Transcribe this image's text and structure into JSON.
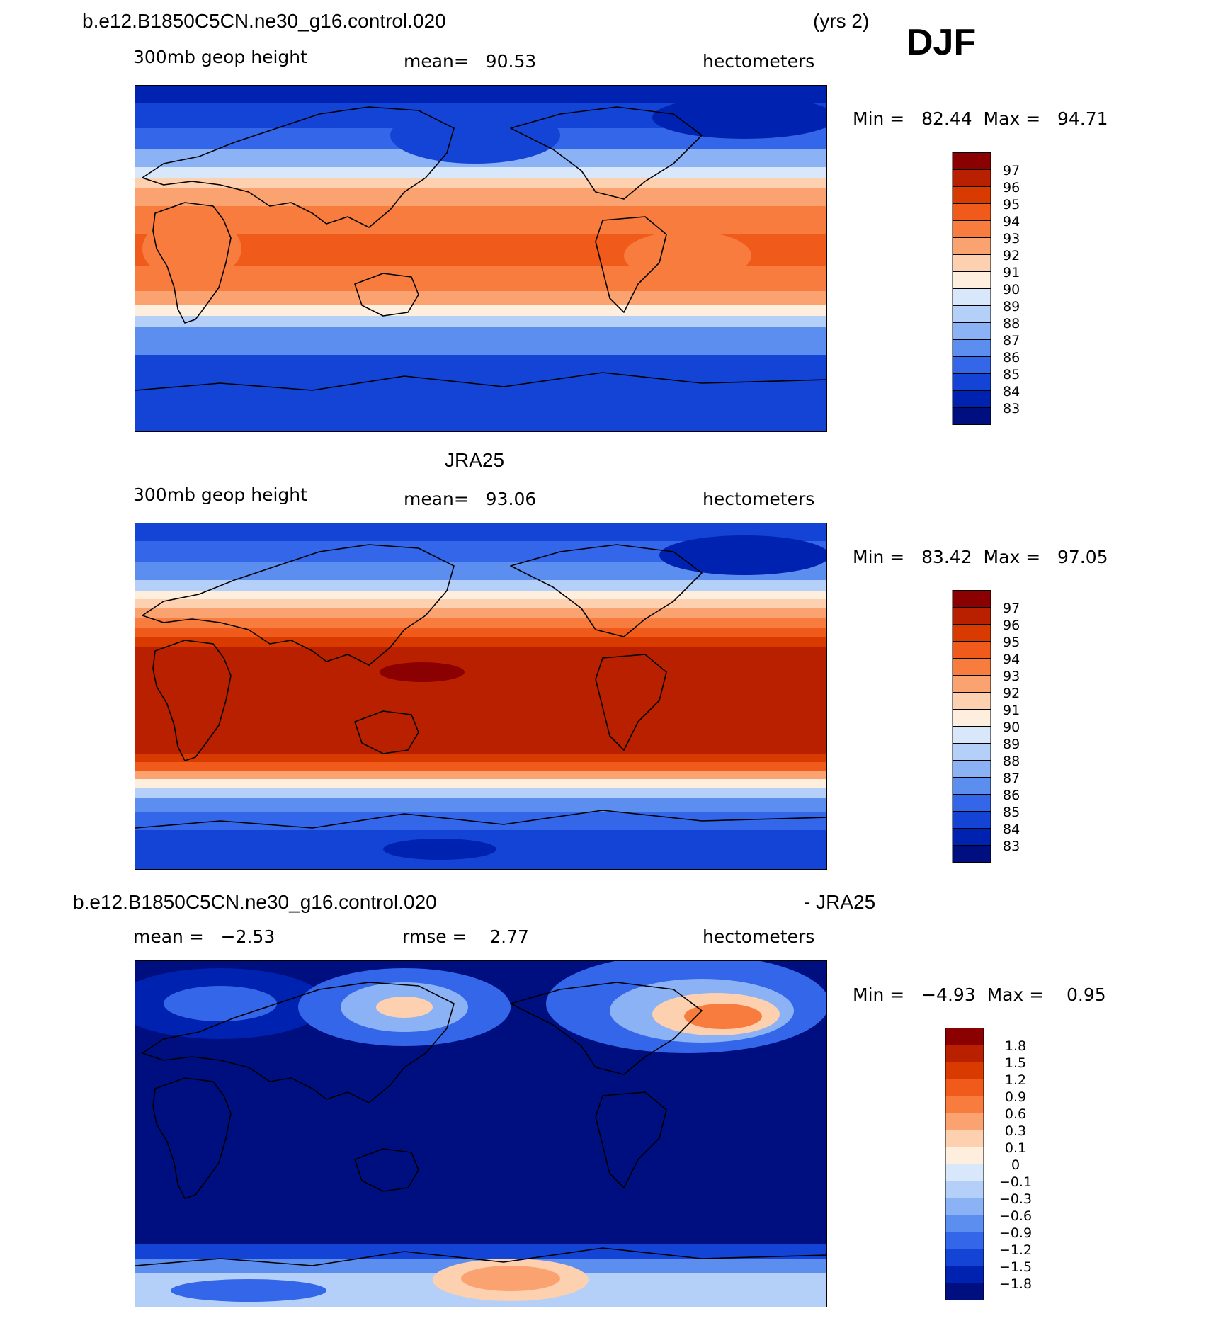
{
  "season": "DJF",
  "panels": [
    {
      "id": "model",
      "header_left": "b.e12.B1850C5CN.ne30_g16.control.020",
      "header_right": "(yrs 2)",
      "left_label": "300mb geop height",
      "center_label": "mean=   90.53",
      "right_label": "hectometers",
      "minmax": "Min =   82.44  Max =   94.71"
    },
    {
      "id": "obs",
      "header_center": "JRA25",
      "left_label": "300mb geop height",
      "center_label": "mean=   93.06",
      "right_label": "hectometers",
      "minmax": "Min =   83.42  Max =   97.05"
    },
    {
      "id": "diff",
      "header_left": "b.e12.B1850C5CN.ne30_g16.control.020",
      "header_right": "- JRA25",
      "left_label": "mean =   −2.53",
      "center_label": "rmse =    2.77",
      "right_label": "hectometers",
      "minmax": "Min =   −4.93  Max =    0.95"
    }
  ],
  "chart_data": [
    {
      "type": "heatmap",
      "title": "b.e12.B1850C5CN.ne30_g16.control.020 (yrs 2)",
      "variable": "300mb geop height",
      "units": "hectometers",
      "mean": 90.53,
      "min": 82.44,
      "max": 94.71,
      "colorbar_levels": [
        "97",
        "96",
        "95",
        "94",
        "93",
        "92",
        "91",
        "90",
        "89",
        "88",
        "87",
        "86",
        "85",
        "84",
        "83"
      ],
      "colors": [
        "#8b0000",
        "#b82000",
        "#d93a00",
        "#f05a1a",
        "#f77c3e",
        "#faa370",
        "#fdd0b0",
        "#fdeedd",
        "#d8e8fa",
        "#b4d0f8",
        "#8bb2f5",
        "#5c8ef0",
        "#3366e8",
        "#1444d6",
        "#0022b0",
        "#000f80"
      ],
      "latitude_band_values": [
        {
          "lat": 85,
          "value": 83.0
        },
        {
          "lat": 70,
          "value": 84.8
        },
        {
          "lat": 55,
          "value": 87.0
        },
        {
          "lat": 40,
          "value": 89.5
        },
        {
          "lat": 30,
          "value": 91.5
        },
        {
          "lat": 20,
          "value": 93.5
        },
        {
          "lat": 0,
          "value": 94.3
        },
        {
          "lat": -20,
          "value": 93.3
        },
        {
          "lat": -30,
          "value": 91.0
        },
        {
          "lat": -40,
          "value": 88.0
        },
        {
          "lat": -55,
          "value": 85.5
        },
        {
          "lat": -70,
          "value": 84.0
        },
        {
          "lat": -85,
          "value": 83.5
        }
      ]
    },
    {
      "type": "heatmap",
      "title": "JRA25",
      "variable": "300mb geop height",
      "units": "hectometers",
      "mean": 93.06,
      "min": 83.42,
      "max": 97.05,
      "colorbar_levels": [
        "97",
        "96",
        "95",
        "94",
        "93",
        "92",
        "91",
        "90",
        "89",
        "88",
        "87",
        "86",
        "85",
        "84",
        "83"
      ],
      "colors": [
        "#8b0000",
        "#b82000",
        "#d93a00",
        "#f05a1a",
        "#f77c3e",
        "#faa370",
        "#fdd0b0",
        "#fdeedd",
        "#d8e8fa",
        "#b4d0f8",
        "#8bb2f5",
        "#5c8ef0",
        "#3366e8",
        "#1444d6",
        "#0022b0",
        "#000f80"
      ],
      "latitude_band_values": [
        {
          "lat": 85,
          "value": 84.0
        },
        {
          "lat": 70,
          "value": 85.5
        },
        {
          "lat": 55,
          "value": 88.0
        },
        {
          "lat": 40,
          "value": 91.0
        },
        {
          "lat": 30,
          "value": 94.0
        },
        {
          "lat": 20,
          "value": 96.3
        },
        {
          "lat": 0,
          "value": 96.6
        },
        {
          "lat": -20,
          "value": 96.3
        },
        {
          "lat": -30,
          "value": 94.5
        },
        {
          "lat": -40,
          "value": 90.5
        },
        {
          "lat": -55,
          "value": 86.5
        },
        {
          "lat": -70,
          "value": 85.0
        },
        {
          "lat": -85,
          "value": 84.0
        }
      ]
    },
    {
      "type": "heatmap",
      "title": "b.e12.B1850C5CN.ne30_g16.control.020 - JRA25",
      "units": "hectometers",
      "mean": -2.53,
      "rmse": 2.77,
      "min": -4.93,
      "max": 0.95,
      "colorbar_levels": [
        "1.8",
        "1.5",
        "1.2",
        "0.9",
        "0.6",
        "0.3",
        "0.1",
        "0",
        "−0.1",
        "−0.3",
        "−0.6",
        "−0.9",
        "−1.2",
        "−1.5",
        "−1.8"
      ],
      "colors": [
        "#8b0000",
        "#b82000",
        "#d93a00",
        "#f05a1a",
        "#f77c3e",
        "#faa370",
        "#fdd0b0",
        "#fdeedd",
        "#d8e8fa",
        "#b4d0f8",
        "#8bb2f5",
        "#5c8ef0",
        "#3366e8",
        "#1444d6",
        "#0022b0",
        "#000f80"
      ]
    }
  ]
}
